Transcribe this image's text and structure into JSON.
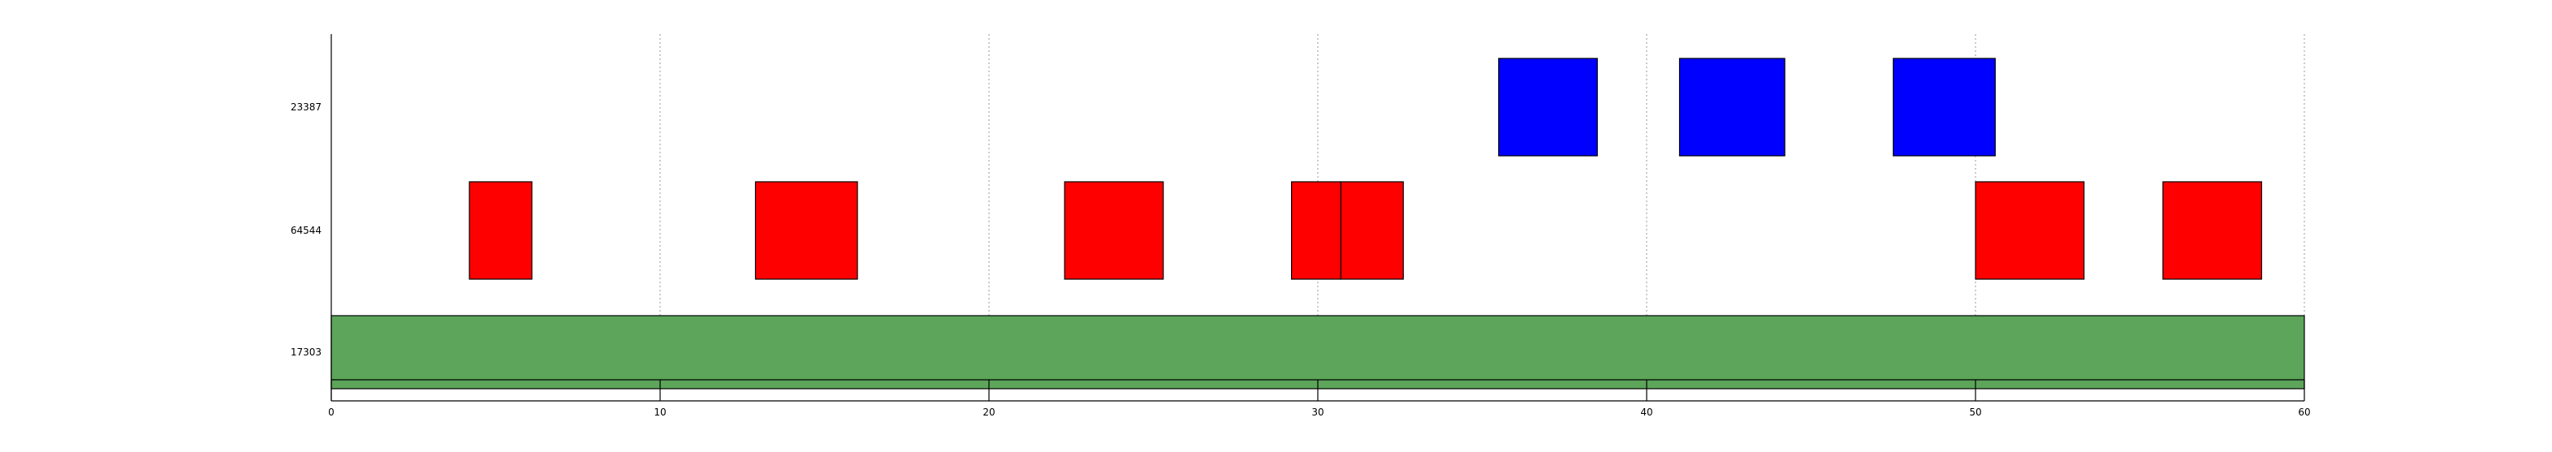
{
  "chart_data": {
    "type": "gantt",
    "title": "",
    "xlabel": "",
    "ylabel": "",
    "xlim": [
      0,
      60
    ],
    "x_ticks": [
      0,
      10,
      20,
      30,
      40,
      50,
      60
    ],
    "x_tick_labels": [
      "0",
      "10",
      "20",
      "30",
      "40",
      "50",
      "60"
    ],
    "grid": "vertical-dotted",
    "legend": "none",
    "rows": [
      {
        "label": "23387",
        "color": "#0000ff",
        "bars": [
          [
            35.5,
            38.5
          ],
          [
            41.0,
            44.2
          ],
          [
            47.5,
            50.6
          ]
        ]
      },
      {
        "label": "64544",
        "color": "#ff0000",
        "bars": [
          [
            4.2,
            6.1
          ],
          [
            12.9,
            16.0
          ],
          [
            22.3,
            25.3
          ],
          [
            29.2,
            30.7
          ],
          [
            30.7,
            32.6
          ],
          [
            50.0,
            53.3
          ],
          [
            55.7,
            58.7
          ]
        ]
      },
      {
        "label": "17303",
        "color": "#5ca55a",
        "bars": [
          [
            0,
            60
          ]
        ]
      }
    ]
  }
}
